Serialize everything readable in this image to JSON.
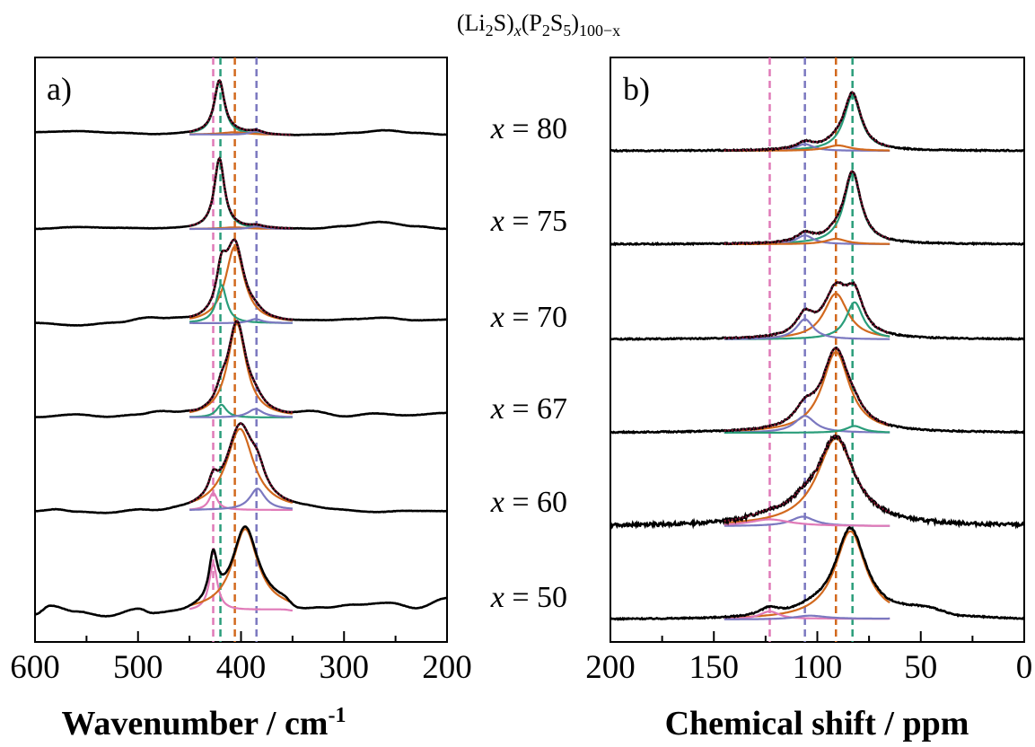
{
  "title": {
    "main": "(Li",
    "sub1": "2",
    "mid1": "S)",
    "subx": "x",
    "mid2": "(P",
    "sub2": "2",
    "mid3": "S",
    "sub3": "5",
    "mid4": ")",
    "sub4": "100−x"
  },
  "compositions": [
    {
      "prefix": "x",
      "label": " = 80",
      "x": 80
    },
    {
      "prefix": "x",
      "label": " = 75",
      "x": 75
    },
    {
      "prefix": "x",
      "label": " = 70",
      "x": 70
    },
    {
      "prefix": "x",
      "label": " = 67",
      "x": 67
    },
    {
      "prefix": "x",
      "label": " = 60",
      "x": 60
    },
    {
      "prefix": "x",
      "label": " = 50",
      "x": 50
    }
  ],
  "colors": {
    "data": "#000000",
    "fit": "#7a1030",
    "orange": "#d2691e",
    "green": "#2a9d7a",
    "purple": "#7b78c0",
    "pink": "#e07ab8"
  },
  "chart_data": [
    {
      "type": "line",
      "panel_label": "a)",
      "xlabel": "Wavenumber / cm",
      "xlabel_sup": "-1",
      "xlim": [
        600,
        200
      ],
      "xticks": [
        "600",
        "500",
        "400",
        "300",
        "200"
      ],
      "reference_lines": [
        {
          "x": 427,
          "color": "pink"
        },
        {
          "x": 420,
          "color": "green"
        },
        {
          "x": 406,
          "color": "orange"
        },
        {
          "x": 385,
          "color": "purple"
        }
      ],
      "series": [
        {
          "composition": 80,
          "baseline": [
            [
              600,
              0.03
            ],
            [
              560,
              0.04
            ],
            [
              520,
              0.02
            ],
            [
              480,
              0.0
            ],
            [
              440,
              0.01
            ],
            [
              400,
              -0.01
            ],
            [
              380,
              -0.01
            ],
            [
              350,
              -0.01
            ],
            [
              320,
              0.0
            ],
            [
              290,
              0.02
            ],
            [
              260,
              0.05
            ],
            [
              230,
              0.02
            ],
            [
              200,
              0.0
            ]
          ],
          "peaks": [
            {
              "center": 421,
              "height": 0.62,
              "width": 6,
              "color": "green"
            },
            {
              "center": 406,
              "height": 0.03,
              "width": 15,
              "color": "orange"
            },
            {
              "center": 385,
              "height": 0.04,
              "width": 8,
              "color": "purple"
            }
          ]
        },
        {
          "composition": 75,
          "baseline": [
            [
              600,
              0.0
            ],
            [
              560,
              0.02
            ],
            [
              520,
              0.01
            ],
            [
              480,
              0.0
            ],
            [
              440,
              0.0
            ],
            [
              400,
              -0.01
            ],
            [
              370,
              0.0
            ],
            [
              330,
              0.0
            ],
            [
              300,
              0.03
            ],
            [
              265,
              0.08
            ],
            [
              230,
              0.03
            ],
            [
              200,
              0.0
            ]
          ],
          "peaks": [
            {
              "center": 421,
              "height": 0.82,
              "width": 6,
              "color": "green"
            },
            {
              "center": 406,
              "height": 0.02,
              "width": 15,
              "color": "orange"
            },
            {
              "center": 385,
              "height": 0.03,
              "width": 8,
              "color": "purple"
            }
          ]
        },
        {
          "composition": 70,
          "baseline": [
            [
              600,
              0.0
            ],
            [
              560,
              -0.03
            ],
            [
              520,
              0.0
            ],
            [
              490,
              0.05
            ],
            [
              470,
              0.03
            ],
            [
              440,
              0.0
            ],
            [
              400,
              -0.01
            ],
            [
              360,
              0.0
            ],
            [
              320,
              0.02
            ],
            [
              290,
              0.04
            ],
            [
              260,
              0.06
            ],
            [
              230,
              0.03
            ],
            [
              200,
              0.04
            ]
          ],
          "peaks": [
            {
              "center": 406,
              "height": 0.9,
              "width": 11,
              "color": "orange"
            },
            {
              "center": 419,
              "height": 0.45,
              "width": 6,
              "color": "green"
            },
            {
              "center": 386,
              "height": 0.05,
              "width": 8,
              "color": "purple"
            }
          ]
        },
        {
          "composition": 67,
          "baseline": [
            [
              600,
              0.0
            ],
            [
              560,
              0.03
            ],
            [
              530,
              0.0
            ],
            [
              500,
              0.02
            ],
            [
              480,
              0.05
            ],
            [
              455,
              0.02
            ],
            [
              440,
              0.0
            ],
            [
              400,
              -0.01
            ],
            [
              360,
              0.0
            ],
            [
              330,
              0.05
            ],
            [
              300,
              0.0
            ],
            [
              270,
              0.04
            ],
            [
              240,
              0.02
            ],
            [
              200,
              0.05
            ]
          ],
          "peaks": [
            {
              "center": 404,
              "height": 1.1,
              "width": 11,
              "color": "orange"
            },
            {
              "center": 419,
              "height": 0.15,
              "width": 6,
              "color": "green"
            },
            {
              "center": 386,
              "height": 0.1,
              "width": 9,
              "color": "purple"
            }
          ]
        },
        {
          "composition": 60,
          "baseline": [
            [
              600,
              -0.02
            ],
            [
              580,
              0.0
            ],
            [
              560,
              -0.03
            ],
            [
              530,
              -0.05
            ],
            [
              500,
              -0.02
            ],
            [
              480,
              -0.04
            ],
            [
              455,
              -0.02
            ],
            [
              430,
              0.0
            ],
            [
              380,
              0.0
            ],
            [
              340,
              0.0
            ],
            [
              310,
              -0.02
            ],
            [
              270,
              -0.04
            ],
            [
              240,
              -0.02
            ],
            [
              200,
              -0.02
            ]
          ],
          "peaks": [
            {
              "center": 401,
              "height": 0.95,
              "width": 16,
              "color": "orange"
            },
            {
              "center": 427,
              "height": 0.2,
              "width": 5,
              "color": "pink"
            },
            {
              "center": 384,
              "height": 0.25,
              "width": 9,
              "color": "purple"
            }
          ]
        },
        {
          "composition": 50,
          "baseline": [
            [
              600,
              -0.05
            ],
            [
              585,
              0.05
            ],
            [
              560,
              -0.02
            ],
            [
              530,
              -0.08
            ],
            [
              500,
              0.0
            ],
            [
              485,
              -0.06
            ],
            [
              460,
              -0.05
            ],
            [
              440,
              -0.02
            ],
            [
              360,
              0.05
            ],
            [
              345,
              -0.04
            ],
            [
              320,
              0.0
            ],
            [
              290,
              0.05
            ],
            [
              255,
              0.08
            ],
            [
              230,
              0.02
            ],
            [
              200,
              0.14
            ]
          ],
          "peaks": [
            {
              "center": 427,
              "height": 0.55,
              "width": 5,
              "color": "pink"
            },
            {
              "center": 396,
              "height": 0.95,
              "width": 15,
              "color": "orange"
            }
          ]
        }
      ]
    },
    {
      "type": "line",
      "panel_label": "b)",
      "xlabel": "Chemical shift / ppm",
      "xlim": [
        200,
        0
      ],
      "xticks": [
        "200",
        "150",
        "100",
        "50",
        "0"
      ],
      "reference_lines": [
        {
          "x": 123,
          "color": "pink"
        },
        {
          "x": 106,
          "color": "purple"
        },
        {
          "x": 91,
          "color": "orange"
        },
        {
          "x": 83,
          "color": "green"
        }
      ],
      "series": [
        {
          "composition": 80,
          "baseline": [
            [
              200,
              0.0
            ],
            [
              0,
              0.0
            ]
          ],
          "peaks": [
            {
              "center": 83,
              "height": 0.82,
              "width": 5,
              "color": "green"
            },
            {
              "center": 106,
              "height": 0.1,
              "width": 5,
              "color": "purple"
            },
            {
              "center": 90,
              "height": 0.08,
              "width": 7,
              "color": "orange"
            }
          ]
        },
        {
          "composition": 75,
          "baseline": [
            [
              200,
              0.0
            ],
            [
              0,
              0.0
            ]
          ],
          "peaks": [
            {
              "center": 83,
              "height": 1.05,
              "width": 5,
              "color": "green"
            },
            {
              "center": 106,
              "height": 0.13,
              "width": 5,
              "color": "purple"
            },
            {
              "center": 91,
              "height": 0.08,
              "width": 6,
              "color": "orange"
            }
          ]
        },
        {
          "composition": 70,
          "baseline": [
            [
              200,
              0.0
            ],
            [
              0,
              0.0
            ]
          ],
          "peaks": [
            {
              "center": 91,
              "height": 0.68,
              "width": 7,
              "color": "orange"
            },
            {
              "center": 82,
              "height": 0.55,
              "width": 5,
              "color": "green"
            },
            {
              "center": 106,
              "height": 0.3,
              "width": 5,
              "color": "purple"
            }
          ]
        },
        {
          "composition": 67,
          "baseline": [
            [
              200,
              0.0
            ],
            [
              0,
              0.0
            ]
          ],
          "peaks": [
            {
              "center": 91,
              "height": 1.2,
              "width": 8,
              "color": "orange"
            },
            {
              "center": 106,
              "height": 0.25,
              "width": 6,
              "color": "purple"
            },
            {
              "center": 82,
              "height": 0.1,
              "width": 5,
              "color": "green"
            }
          ]
        },
        {
          "composition": 60,
          "baseline": [
            [
              200,
              0.0
            ],
            [
              0,
              0.0
            ]
          ],
          "peaks": [
            {
              "center": 91,
              "height": 1.3,
              "width": 11,
              "color": "orange"
            },
            {
              "center": 107,
              "height": 0.14,
              "width": 7,
              "color": "purple"
            },
            {
              "center": 123,
              "height": 0.1,
              "width": 12,
              "color": "pink"
            }
          ]
        },
        {
          "composition": 50,
          "baseline": [
            [
              200,
              0.0
            ],
            [
              120,
              0.0
            ],
            [
              95,
              0.05
            ],
            [
              70,
              0.05
            ],
            [
              48,
              0.12
            ],
            [
              30,
              0.02
            ],
            [
              0,
              0.0
            ]
          ],
          "peaks": [
            {
              "center": 84,
              "height": 1.3,
              "width": 9,
              "color": "orange"
            },
            {
              "center": 123,
              "height": 0.12,
              "width": 6,
              "color": "pink"
            },
            {
              "center": 104,
              "height": 0.05,
              "width": 9,
              "color": "purple"
            }
          ]
        }
      ]
    }
  ]
}
